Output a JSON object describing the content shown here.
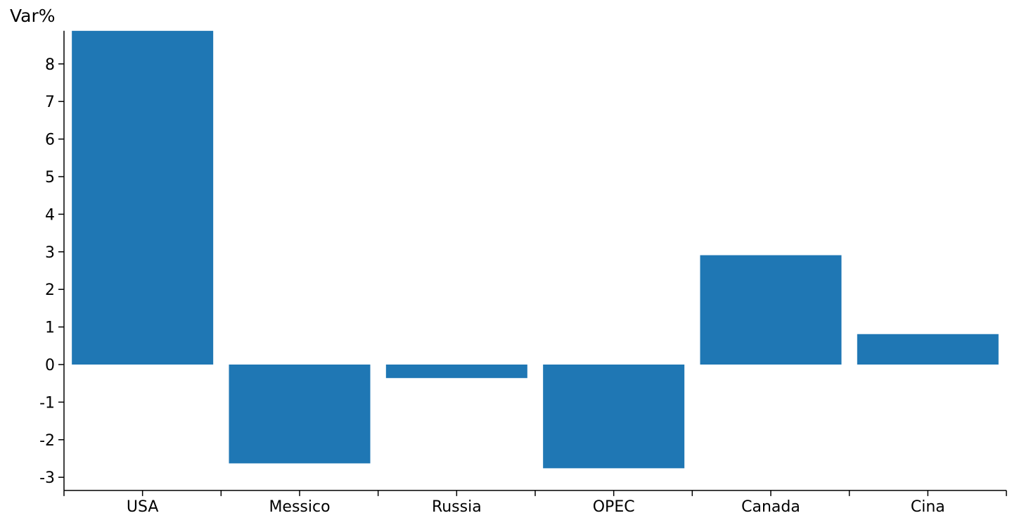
{
  "chart_data": {
    "type": "bar",
    "ylabel": "Var%",
    "xlabel": "",
    "title": "",
    "categories": [
      "USA",
      "Messico",
      "Russia",
      "OPEC",
      "Canada",
      "Cina"
    ],
    "values": [
      8.88,
      -2.63,
      -0.36,
      -2.76,
      2.91,
      0.81
    ],
    "ylim": [
      -3.35,
      8.88
    ],
    "yticks": [
      -3,
      -2,
      -1,
      0,
      1,
      2,
      3,
      4,
      5,
      6,
      7,
      8
    ],
    "ytick_labels": [
      "-3",
      "-2",
      "-1",
      "0",
      "1",
      "2",
      "3",
      "4",
      "5",
      "6",
      "7",
      "8"
    ],
    "grid": false,
    "bar_color": "#1f77b4"
  }
}
